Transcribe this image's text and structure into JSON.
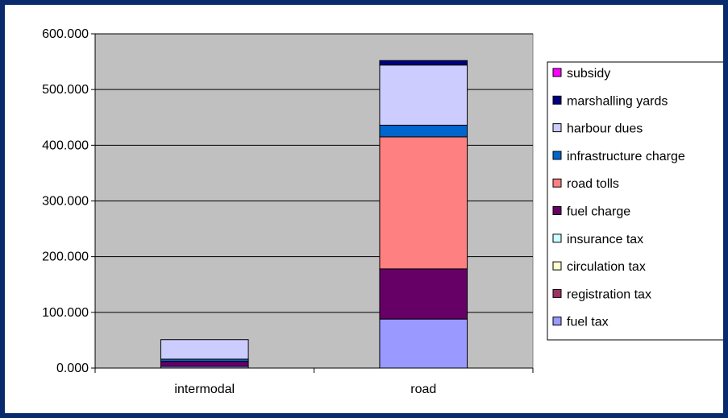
{
  "chart_data": {
    "type": "bar",
    "stacked": true,
    "categories": [
      "intermodal",
      "road"
    ],
    "ylim": [
      0,
      600
    ],
    "yticks": [
      "0.000",
      "100.000",
      "200.000",
      "300.000",
      "400.000",
      "500.000",
      "600.000"
    ],
    "ytick_values": [
      0,
      100,
      200,
      300,
      400,
      500,
      600
    ],
    "grid": true,
    "legend_placement": "right",
    "series": [
      {
        "name": "fuel tax",
        "color": "#9999ff",
        "values": [
          3,
          88
        ]
      },
      {
        "name": "registration tax",
        "color": "#993366",
        "values": [
          0,
          0
        ]
      },
      {
        "name": "circulation tax",
        "color": "#ffffcc",
        "values": [
          0,
          0
        ]
      },
      {
        "name": "insurance tax",
        "color": "#ccffff",
        "values": [
          0,
          0
        ]
      },
      {
        "name": "fuel charge",
        "color": "#660066",
        "values": [
          9,
          90
        ]
      },
      {
        "name": "road tolls",
        "color": "#ff8080",
        "values": [
          0,
          237
        ]
      },
      {
        "name": "infrastructure charge",
        "color": "#0066cc",
        "values": [
          4,
          21
        ]
      },
      {
        "name": "harbour dues",
        "color": "#ccccff",
        "values": [
          35,
          108
        ]
      },
      {
        "name": "marshalling yards",
        "color": "#000080",
        "values": [
          0,
          8
        ]
      },
      {
        "name": "subsidy",
        "color": "#ff00ff",
        "values": [
          0,
          0
        ]
      }
    ]
  }
}
